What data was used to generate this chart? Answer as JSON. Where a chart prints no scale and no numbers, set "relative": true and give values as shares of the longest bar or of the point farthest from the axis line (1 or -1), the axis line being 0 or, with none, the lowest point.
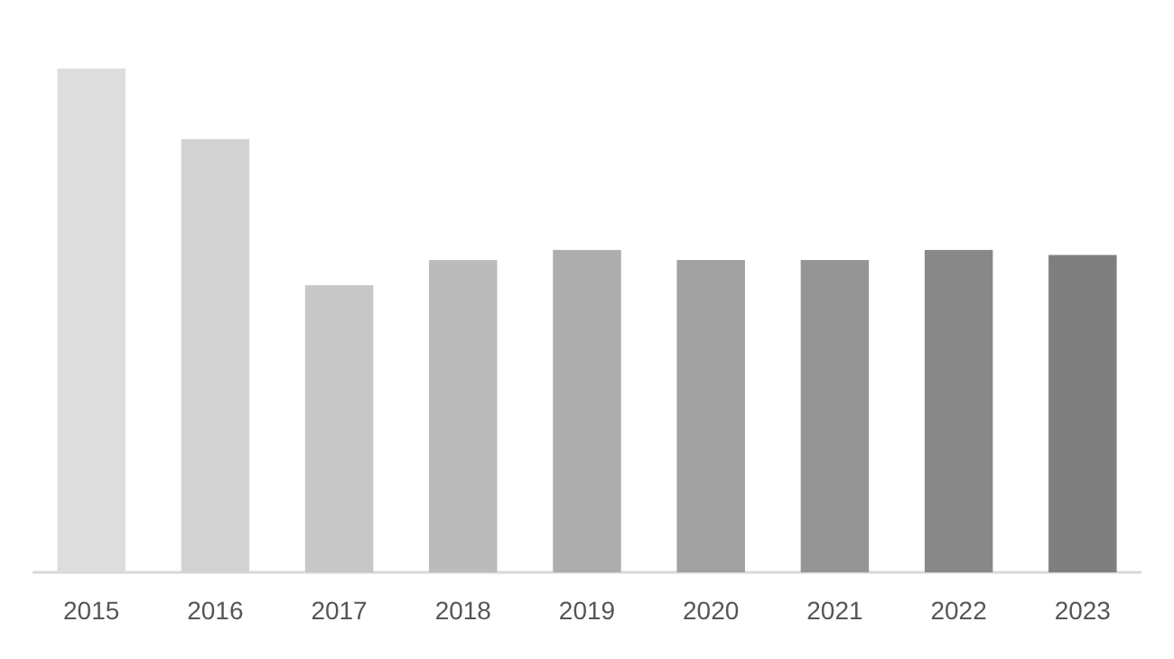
{
  "chart_data": {
    "type": "bar",
    "relative": true,
    "categories": [
      "2015",
      "2016",
      "2017",
      "2018",
      "2019",
      "2020",
      "2021",
      "2022",
      "2023"
    ],
    "values": [
      1,
      0.86,
      0.57,
      0.62,
      0.64,
      0.62,
      0.62,
      0.64,
      0.63
    ],
    "colors": [
      "#dddddd",
      "#d3d3d3",
      "#c7c7c7",
      "#bbbbbb",
      "#adadad",
      "#a1a1a1",
      "#959595",
      "#888888",
      "#7f7f7f"
    ]
  }
}
